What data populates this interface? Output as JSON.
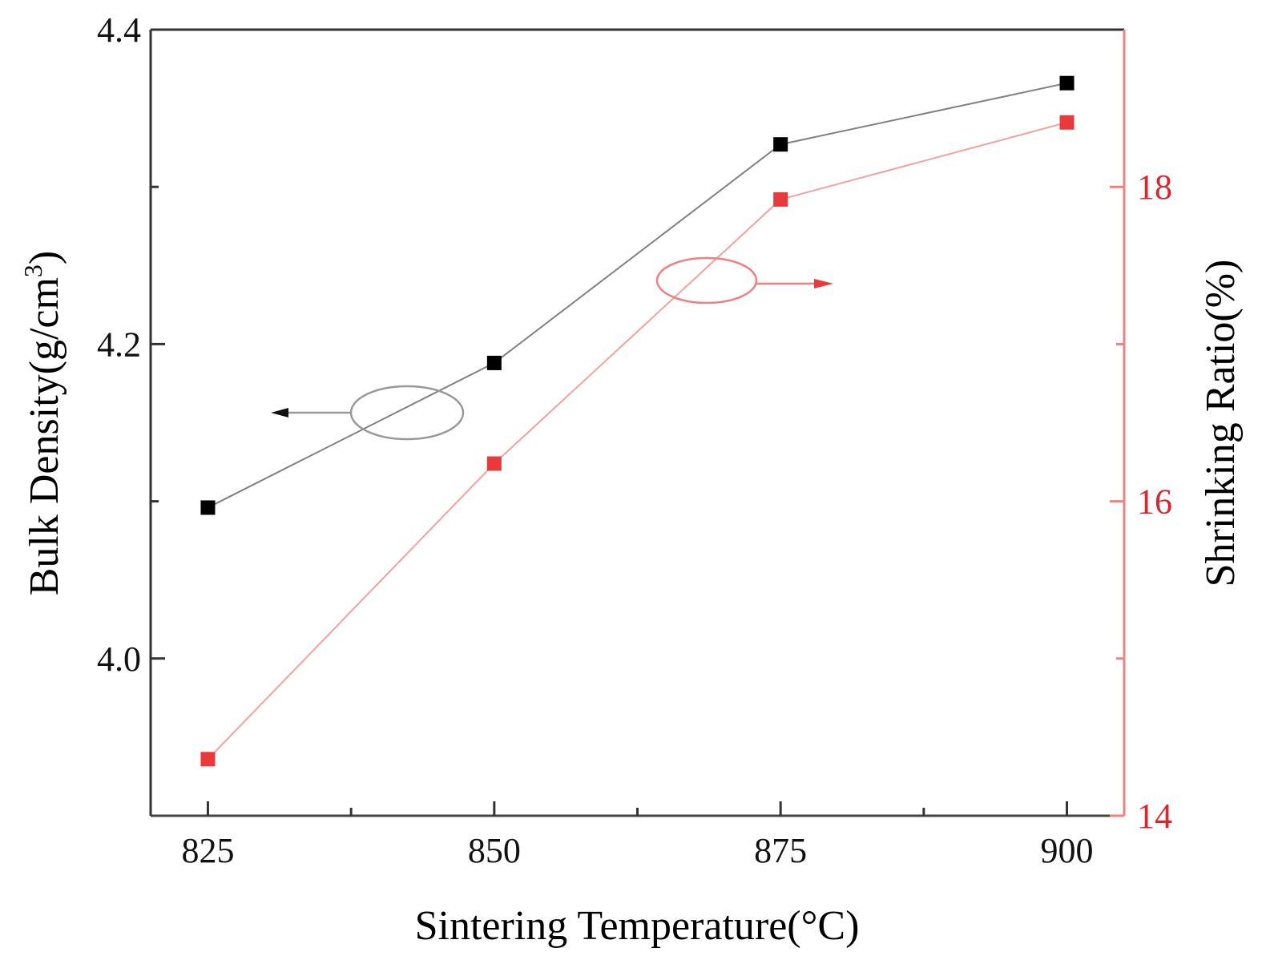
{
  "chart_data": {
    "type": "line",
    "xlabel": "Sintering Temperature(°C)",
    "ylabel_left": "Bulk Density(g/cm",
    "ylabel_left_sup": "3",
    "ylabel_left_close": ")",
    "ylabel_right": "Shrinking Ratio(%)",
    "x": [
      825,
      850,
      875,
      900
    ],
    "xlim": [
      820,
      905
    ],
    "xticks": [
      "825",
      "850",
      "875",
      "900"
    ],
    "ylim_left": [
      3.9,
      4.4
    ],
    "yticks_left": [
      "4.0",
      "4.2",
      "4.4"
    ],
    "ylim_right": [
      14,
      19
    ],
    "yticks_right": [
      "14",
      "16",
      "18"
    ],
    "grid": false,
    "series": [
      {
        "axis": "left",
        "values": [
          4.096,
          4.188,
          4.327,
          4.366
        ],
        "color": "#000000",
        "line_color": "#808080",
        "marker": "square"
      },
      {
        "axis": "right",
        "values": [
          14.36,
          16.24,
          17.92,
          18.41
        ],
        "color": "#e83a3a",
        "line_color": "#f4a0a0",
        "marker": "square"
      }
    ],
    "annotations": [
      {
        "type": "ellipse-arrow",
        "series_axis": "left",
        "direction": "left",
        "color": "#808080"
      },
      {
        "type": "ellipse-arrow",
        "series_axis": "right",
        "direction": "right",
        "color": "#e83a3a"
      }
    ],
    "right_axis_color": "#f08080",
    "right_tick_label_color": "#d9262e"
  }
}
